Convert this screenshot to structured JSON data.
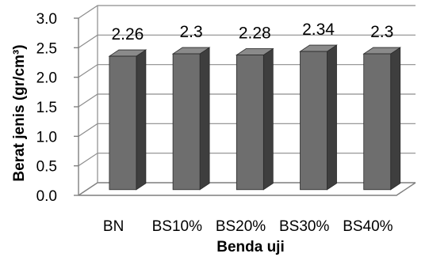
{
  "chart_data": {
    "type": "bar",
    "categories": [
      "BN",
      "BS10%",
      "BS20%",
      "BS30%",
      "BS40%"
    ],
    "values": [
      2.26,
      2.3,
      2.28,
      2.34,
      2.3
    ],
    "value_labels": [
      "2.26",
      "2.3",
      "2.28",
      "2.34",
      "2.3"
    ],
    "title": "",
    "xlabel": "Benda uji",
    "ylabel": "Berat jenis (gr/cm³)",
    "ylim": [
      0,
      3
    ],
    "yticks": [
      "0.0",
      "0.5",
      "1.0",
      "1.5",
      "2.0",
      "2.5",
      "3.0"
    ],
    "grid": true,
    "legend": "none",
    "style": "3d-column",
    "colors": {
      "bar_front": "#6e6e6e",
      "bar_side": "#3e3e3e",
      "bar_top": "#8a8a8a",
      "grid": "#8c8c8c"
    }
  }
}
